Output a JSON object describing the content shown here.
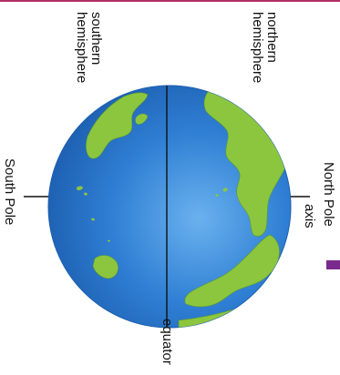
{
  "labels": {
    "northern_hemisphere": "northern\nhemisphere",
    "southern_hemisphere": "southern\nhemisphere",
    "north_pole": "North Pole",
    "axis": "axis",
    "south_pole": "South Pole",
    "equator": "equator"
  },
  "colors": {
    "ocean": "#2f7fd4",
    "ocean_light": "#6ab1ee",
    "land": "#8cc63f",
    "land_dark": "#5e9a2a",
    "line": "#111111",
    "accent": "#7a2a8c",
    "top_rule": "#b0306a"
  }
}
